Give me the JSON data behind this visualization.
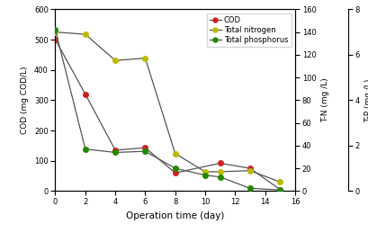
{
  "xlabel": "Operation time (day)",
  "ylabel_left": "COD (mg COD/L)",
  "ylabel_mid": "T-N (mg /L)",
  "ylabel_right": "T-P (mg /L)",
  "cod_x": [
    0,
    2,
    4,
    6,
    8,
    11,
    13,
    15
  ],
  "cod_y": [
    500,
    320,
    135,
    143,
    60,
    92,
    75,
    5
  ],
  "tn_x": [
    0,
    2,
    4,
    6,
    8,
    10,
    11,
    13,
    15
  ],
  "tn_y": [
    140,
    138,
    115,
    117,
    33,
    17,
    17,
    18,
    8
  ],
  "tp_x": [
    0,
    2,
    4,
    6,
    8,
    10,
    11,
    13,
    15
  ],
  "tp_y": [
    7.1,
    1.85,
    1.7,
    1.75,
    1.0,
    0.7,
    0.62,
    0.12,
    0.05
  ],
  "cod_color": "#cc2222",
  "tn_color": "#bbbb00",
  "tp_color": "#228800",
  "line_color": "#555555",
  "xlim": [
    0,
    16
  ],
  "ylim_left": [
    0,
    600
  ],
  "ylim_mid": [
    0,
    160
  ],
  "ylim_right": [
    0,
    8
  ],
  "xticks": [
    0,
    2,
    4,
    6,
    8,
    10,
    12,
    14,
    16
  ],
  "yticks_left": [
    0,
    100,
    200,
    300,
    400,
    500,
    600
  ],
  "yticks_mid": [
    0,
    20,
    40,
    60,
    80,
    100,
    120,
    140,
    160
  ],
  "yticks_right": [
    0,
    2,
    4,
    6,
    8
  ]
}
